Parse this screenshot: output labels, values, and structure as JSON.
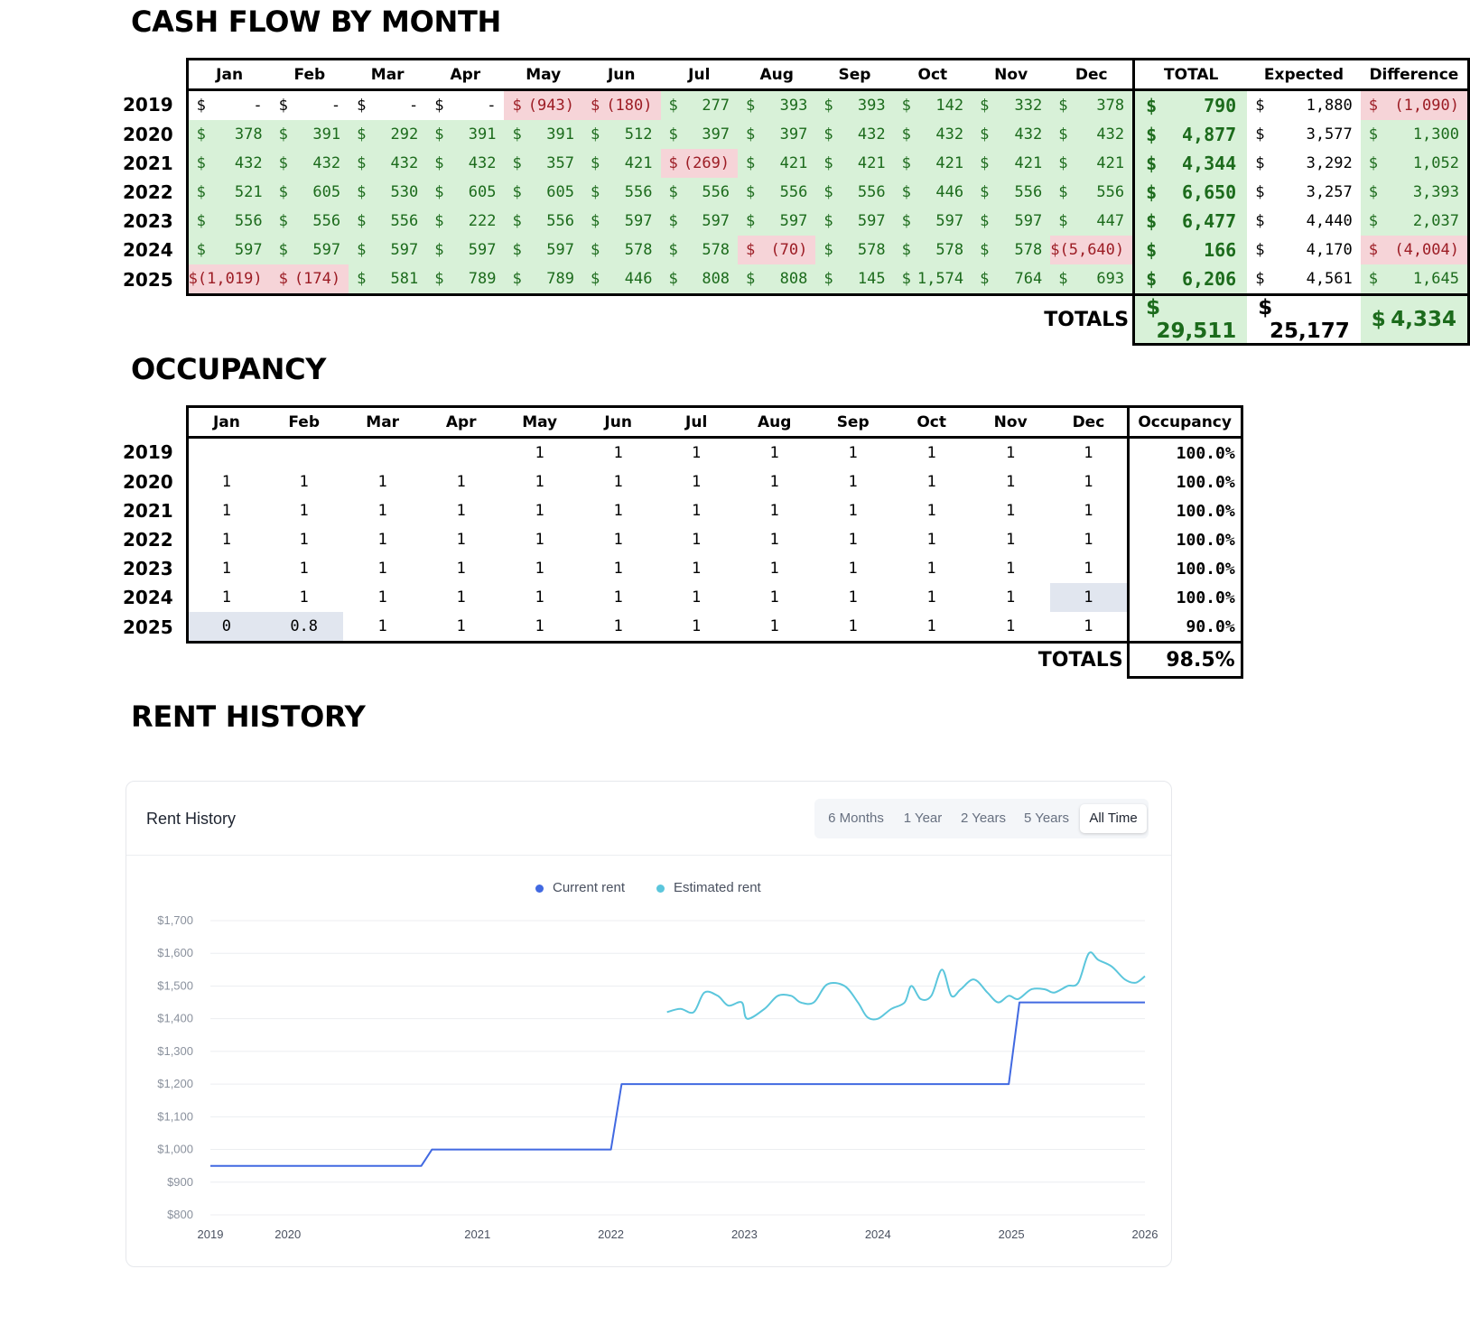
{
  "cashflow": {
    "title": "CASH FLOW BY MONTH",
    "months": [
      "Jan",
      "Feb",
      "Mar",
      "Apr",
      "May",
      "Jun",
      "Jul",
      "Aug",
      "Sep",
      "Oct",
      "Nov",
      "Dec"
    ],
    "extra_headers": [
      "TOTAL",
      "Expected",
      "Difference"
    ],
    "rows": [
      {
        "year": "2019",
        "cells": [
          {
            "d": "$",
            "v": "-",
            "s": "nil"
          },
          {
            "d": "$",
            "v": "-",
            "s": "nil"
          },
          {
            "d": "$",
            "v": "-",
            "s": "nil"
          },
          {
            "d": "$",
            "v": "-",
            "s": "nil"
          },
          {
            "d": "$",
            "v": "(943)",
            "s": "neg"
          },
          {
            "d": "$",
            "v": "(180)",
            "s": "neg"
          },
          {
            "d": "$",
            "v": "277",
            "s": "pos"
          },
          {
            "d": "$",
            "v": "393",
            "s": "pos"
          },
          {
            "d": "$",
            "v": "393",
            "s": "pos"
          },
          {
            "d": "$",
            "v": "142",
            "s": "pos"
          },
          {
            "d": "$",
            "v": "332",
            "s": "pos"
          },
          {
            "d": "$",
            "v": "378",
            "s": "pos"
          }
        ],
        "total": {
          "d": "$",
          "v": "790",
          "s": "pos"
        },
        "expected": {
          "d": "$",
          "v": "1,880",
          "s": "nil"
        },
        "difference": {
          "d": "$",
          "v": "(1,090)",
          "s": "neg"
        }
      },
      {
        "year": "2020",
        "cells": [
          {
            "d": "$",
            "v": "378",
            "s": "pos"
          },
          {
            "d": "$",
            "v": "391",
            "s": "pos"
          },
          {
            "d": "$",
            "v": "292",
            "s": "pos"
          },
          {
            "d": "$",
            "v": "391",
            "s": "pos"
          },
          {
            "d": "$",
            "v": "391",
            "s": "pos"
          },
          {
            "d": "$",
            "v": "512",
            "s": "pos"
          },
          {
            "d": "$",
            "v": "397",
            "s": "pos"
          },
          {
            "d": "$",
            "v": "397",
            "s": "pos"
          },
          {
            "d": "$",
            "v": "432",
            "s": "pos"
          },
          {
            "d": "$",
            "v": "432",
            "s": "pos"
          },
          {
            "d": "$",
            "v": "432",
            "s": "pos"
          },
          {
            "d": "$",
            "v": "432",
            "s": "pos"
          }
        ],
        "total": {
          "d": "$",
          "v": "4,877",
          "s": "pos"
        },
        "expected": {
          "d": "$",
          "v": "3,577",
          "s": "nil"
        },
        "difference": {
          "d": "$",
          "v": "1,300",
          "s": "pos"
        }
      },
      {
        "year": "2021",
        "cells": [
          {
            "d": "$",
            "v": "432",
            "s": "pos"
          },
          {
            "d": "$",
            "v": "432",
            "s": "pos"
          },
          {
            "d": "$",
            "v": "432",
            "s": "pos"
          },
          {
            "d": "$",
            "v": "432",
            "s": "pos"
          },
          {
            "d": "$",
            "v": "357",
            "s": "pos"
          },
          {
            "d": "$",
            "v": "421",
            "s": "pos"
          },
          {
            "d": "$",
            "v": "(269)",
            "s": "neg"
          },
          {
            "d": "$",
            "v": "421",
            "s": "pos"
          },
          {
            "d": "$",
            "v": "421",
            "s": "pos"
          },
          {
            "d": "$",
            "v": "421",
            "s": "pos"
          },
          {
            "d": "$",
            "v": "421",
            "s": "pos"
          },
          {
            "d": "$",
            "v": "421",
            "s": "pos"
          }
        ],
        "total": {
          "d": "$",
          "v": "4,344",
          "s": "pos"
        },
        "expected": {
          "d": "$",
          "v": "3,292",
          "s": "nil"
        },
        "difference": {
          "d": "$",
          "v": "1,052",
          "s": "pos"
        }
      },
      {
        "year": "2022",
        "cells": [
          {
            "d": "$",
            "v": "521",
            "s": "pos"
          },
          {
            "d": "$",
            "v": "605",
            "s": "pos"
          },
          {
            "d": "$",
            "v": "530",
            "s": "pos"
          },
          {
            "d": "$",
            "v": "605",
            "s": "pos"
          },
          {
            "d": "$",
            "v": "605",
            "s": "pos"
          },
          {
            "d": "$",
            "v": "556",
            "s": "pos"
          },
          {
            "d": "$",
            "v": "556",
            "s": "pos"
          },
          {
            "d": "$",
            "v": "556",
            "s": "pos"
          },
          {
            "d": "$",
            "v": "556",
            "s": "pos"
          },
          {
            "d": "$",
            "v": "446",
            "s": "pos"
          },
          {
            "d": "$",
            "v": "556",
            "s": "pos"
          },
          {
            "d": "$",
            "v": "556",
            "s": "pos"
          }
        ],
        "total": {
          "d": "$",
          "v": "6,650",
          "s": "pos"
        },
        "expected": {
          "d": "$",
          "v": "3,257",
          "s": "nil"
        },
        "difference": {
          "d": "$",
          "v": "3,393",
          "s": "pos"
        }
      },
      {
        "year": "2023",
        "cells": [
          {
            "d": "$",
            "v": "556",
            "s": "pos"
          },
          {
            "d": "$",
            "v": "556",
            "s": "pos"
          },
          {
            "d": "$",
            "v": "556",
            "s": "pos"
          },
          {
            "d": "$",
            "v": "222",
            "s": "pos"
          },
          {
            "d": "$",
            "v": "556",
            "s": "pos"
          },
          {
            "d": "$",
            "v": "597",
            "s": "pos"
          },
          {
            "d": "$",
            "v": "597",
            "s": "pos"
          },
          {
            "d": "$",
            "v": "597",
            "s": "pos"
          },
          {
            "d": "$",
            "v": "597",
            "s": "pos"
          },
          {
            "d": "$",
            "v": "597",
            "s": "pos"
          },
          {
            "d": "$",
            "v": "597",
            "s": "pos"
          },
          {
            "d": "$",
            "v": "447",
            "s": "pos"
          }
        ],
        "total": {
          "d": "$",
          "v": "6,477",
          "s": "pos"
        },
        "expected": {
          "d": "$",
          "v": "4,440",
          "s": "nil"
        },
        "difference": {
          "d": "$",
          "v": "2,037",
          "s": "pos"
        }
      },
      {
        "year": "2024",
        "cells": [
          {
            "d": "$",
            "v": "597",
            "s": "pos"
          },
          {
            "d": "$",
            "v": "597",
            "s": "pos"
          },
          {
            "d": "$",
            "v": "597",
            "s": "pos"
          },
          {
            "d": "$",
            "v": "597",
            "s": "pos"
          },
          {
            "d": "$",
            "v": "597",
            "s": "pos"
          },
          {
            "d": "$",
            "v": "578",
            "s": "pos"
          },
          {
            "d": "$",
            "v": "578",
            "s": "pos"
          },
          {
            "d": "$",
            "v": "(70)",
            "s": "neg"
          },
          {
            "d": "$",
            "v": "578",
            "s": "pos"
          },
          {
            "d": "$",
            "v": "578",
            "s": "pos"
          },
          {
            "d": "$",
            "v": "578",
            "s": "pos"
          },
          {
            "d": "",
            "v": "$(5,640)",
            "s": "neg"
          }
        ],
        "total": {
          "d": "$",
          "v": "166",
          "s": "pos"
        },
        "expected": {
          "d": "$",
          "v": "4,170",
          "s": "nil"
        },
        "difference": {
          "d": "$",
          "v": "(4,004)",
          "s": "neg"
        }
      },
      {
        "year": "2025",
        "cells": [
          {
            "d": "",
            "v": "$(1,019)",
            "s": "neg"
          },
          {
            "d": "$",
            "v": "(174)",
            "s": "neg"
          },
          {
            "d": "$",
            "v": "581",
            "s": "pos"
          },
          {
            "d": "$",
            "v": "789",
            "s": "pos"
          },
          {
            "d": "$",
            "v": "789",
            "s": "pos"
          },
          {
            "d": "$",
            "v": "446",
            "s": "pos"
          },
          {
            "d": "$",
            "v": "808",
            "s": "pos"
          },
          {
            "d": "$",
            "v": "808",
            "s": "pos"
          },
          {
            "d": "$",
            "v": "145",
            "s": "pos"
          },
          {
            "d": "$",
            "v": "1,574",
            "s": "pos"
          },
          {
            "d": "$",
            "v": "764",
            "s": "pos"
          },
          {
            "d": "$",
            "v": "693",
            "s": "pos"
          }
        ],
        "total": {
          "d": "$",
          "v": "6,206",
          "s": "pos"
        },
        "expected": {
          "d": "$",
          "v": "4,561",
          "s": "nil"
        },
        "difference": {
          "d": "$",
          "v": "1,645",
          "s": "pos"
        }
      }
    ],
    "totals": {
      "label": "TOTALS",
      "total": {
        "d": "$",
        "v": "29,511"
      },
      "expected": {
        "d": "$",
        "v": "25,177"
      },
      "difference": {
        "d": "$",
        "v": "4,334"
      }
    }
  },
  "occupancy": {
    "title": "OCCUPANCY",
    "months": [
      "Jan",
      "Feb",
      "Mar",
      "Apr",
      "May",
      "Jun",
      "Jul",
      "Aug",
      "Sep",
      "Oct",
      "Nov",
      "Dec"
    ],
    "extra_header": "Occupancy",
    "rows": [
      {
        "year": "2019",
        "cells": [
          "",
          "",
          "",
          "",
          "1",
          "1",
          "1",
          "1",
          "1",
          "1",
          "1",
          "1"
        ],
        "pct": "100.0%",
        "hl": []
      },
      {
        "year": "2020",
        "cells": [
          "1",
          "1",
          "1",
          "1",
          "1",
          "1",
          "1",
          "1",
          "1",
          "1",
          "1",
          "1"
        ],
        "pct": "100.0%",
        "hl": []
      },
      {
        "year": "2021",
        "cells": [
          "1",
          "1",
          "1",
          "1",
          "1",
          "1",
          "1",
          "1",
          "1",
          "1",
          "1",
          "1"
        ],
        "pct": "100.0%",
        "hl": []
      },
      {
        "year": "2022",
        "cells": [
          "1",
          "1",
          "1",
          "1",
          "1",
          "1",
          "1",
          "1",
          "1",
          "1",
          "1",
          "1"
        ],
        "pct": "100.0%",
        "hl": []
      },
      {
        "year": "2023",
        "cells": [
          "1",
          "1",
          "1",
          "1",
          "1",
          "1",
          "1",
          "1",
          "1",
          "1",
          "1",
          "1"
        ],
        "pct": "100.0%",
        "hl": []
      },
      {
        "year": "2024",
        "cells": [
          "1",
          "1",
          "1",
          "1",
          "1",
          "1",
          "1",
          "1",
          "1",
          "1",
          "1",
          "1"
        ],
        "pct": "100.0%",
        "hl": [
          11
        ]
      },
      {
        "year": "2025",
        "cells": [
          "0",
          "0.8",
          "1",
          "1",
          "1",
          "1",
          "1",
          "1",
          "1",
          "1",
          "1",
          "1"
        ],
        "pct": "90.0%",
        "hl": [
          0,
          1
        ]
      }
    ],
    "totals": {
      "label": "TOTALS",
      "value": "98.5%"
    }
  },
  "rent_history": {
    "section_title": "RENT HISTORY",
    "card_title": "Rent History",
    "ranges": [
      "6 Months",
      "1 Year",
      "2 Years",
      "5 Years",
      "All Time"
    ],
    "active_range": "All Time",
    "legend": [
      {
        "label": "Current rent",
        "color": "#4169e1"
      },
      {
        "label": "Estimated rent",
        "color": "#5bc6dc"
      }
    ]
  },
  "chart_data": {
    "type": "line",
    "title": "Rent History",
    "x_ticks": [
      "2019",
      "2020",
      "2021",
      "2022",
      "2023",
      "2024",
      "2025",
      "2026"
    ],
    "y_ticks": [
      "$800",
      "$900",
      "$1,000",
      "$1,100",
      "$1,200",
      "$1,300",
      "$1,400",
      "$1,500",
      "$1,600",
      "$1,700"
    ],
    "ylim": [
      800,
      1700
    ],
    "xlim": [
      2019.0,
      2026.0
    ],
    "grid": true,
    "legend_position": "top-center",
    "series": [
      {
        "name": "Current rent",
        "color": "#4169e1",
        "points": [
          [
            2019.0,
            950
          ],
          [
            2020.58,
            950
          ],
          [
            2020.66,
            1000
          ],
          [
            2022.0,
            1000
          ],
          [
            2022.08,
            1200
          ],
          [
            2024.98,
            1200
          ],
          [
            2025.06,
            1450
          ],
          [
            2026.0,
            1450
          ]
        ]
      },
      {
        "name": "Estimated rent",
        "color": "#5bc6dc",
        "points": [
          [
            2022.42,
            1420
          ],
          [
            2022.52,
            1430
          ],
          [
            2022.62,
            1420
          ],
          [
            2022.7,
            1480
          ],
          [
            2022.8,
            1470
          ],
          [
            2022.88,
            1440
          ],
          [
            2022.98,
            1450
          ],
          [
            2023.02,
            1400
          ],
          [
            2023.15,
            1430
          ],
          [
            2023.25,
            1470
          ],
          [
            2023.35,
            1470
          ],
          [
            2023.42,
            1450
          ],
          [
            2023.52,
            1450
          ],
          [
            2023.62,
            1505
          ],
          [
            2023.75,
            1500
          ],
          [
            2023.85,
            1450
          ],
          [
            2023.92,
            1405
          ],
          [
            2024.0,
            1400
          ],
          [
            2024.1,
            1430
          ],
          [
            2024.2,
            1450
          ],
          [
            2024.25,
            1500
          ],
          [
            2024.32,
            1460
          ],
          [
            2024.4,
            1470
          ],
          [
            2024.48,
            1550
          ],
          [
            2024.55,
            1470
          ],
          [
            2024.62,
            1490
          ],
          [
            2024.72,
            1520
          ],
          [
            2024.82,
            1480
          ],
          [
            2024.9,
            1450
          ],
          [
            2024.98,
            1470
          ],
          [
            2025.05,
            1460
          ],
          [
            2025.15,
            1490
          ],
          [
            2025.25,
            1490
          ],
          [
            2025.32,
            1480
          ],
          [
            2025.42,
            1500
          ],
          [
            2025.5,
            1510
          ],
          [
            2025.58,
            1600
          ],
          [
            2025.65,
            1580
          ],
          [
            2025.75,
            1560
          ],
          [
            2025.85,
            1520
          ],
          [
            2025.93,
            1510
          ],
          [
            2026.0,
            1530
          ]
        ]
      }
    ]
  }
}
